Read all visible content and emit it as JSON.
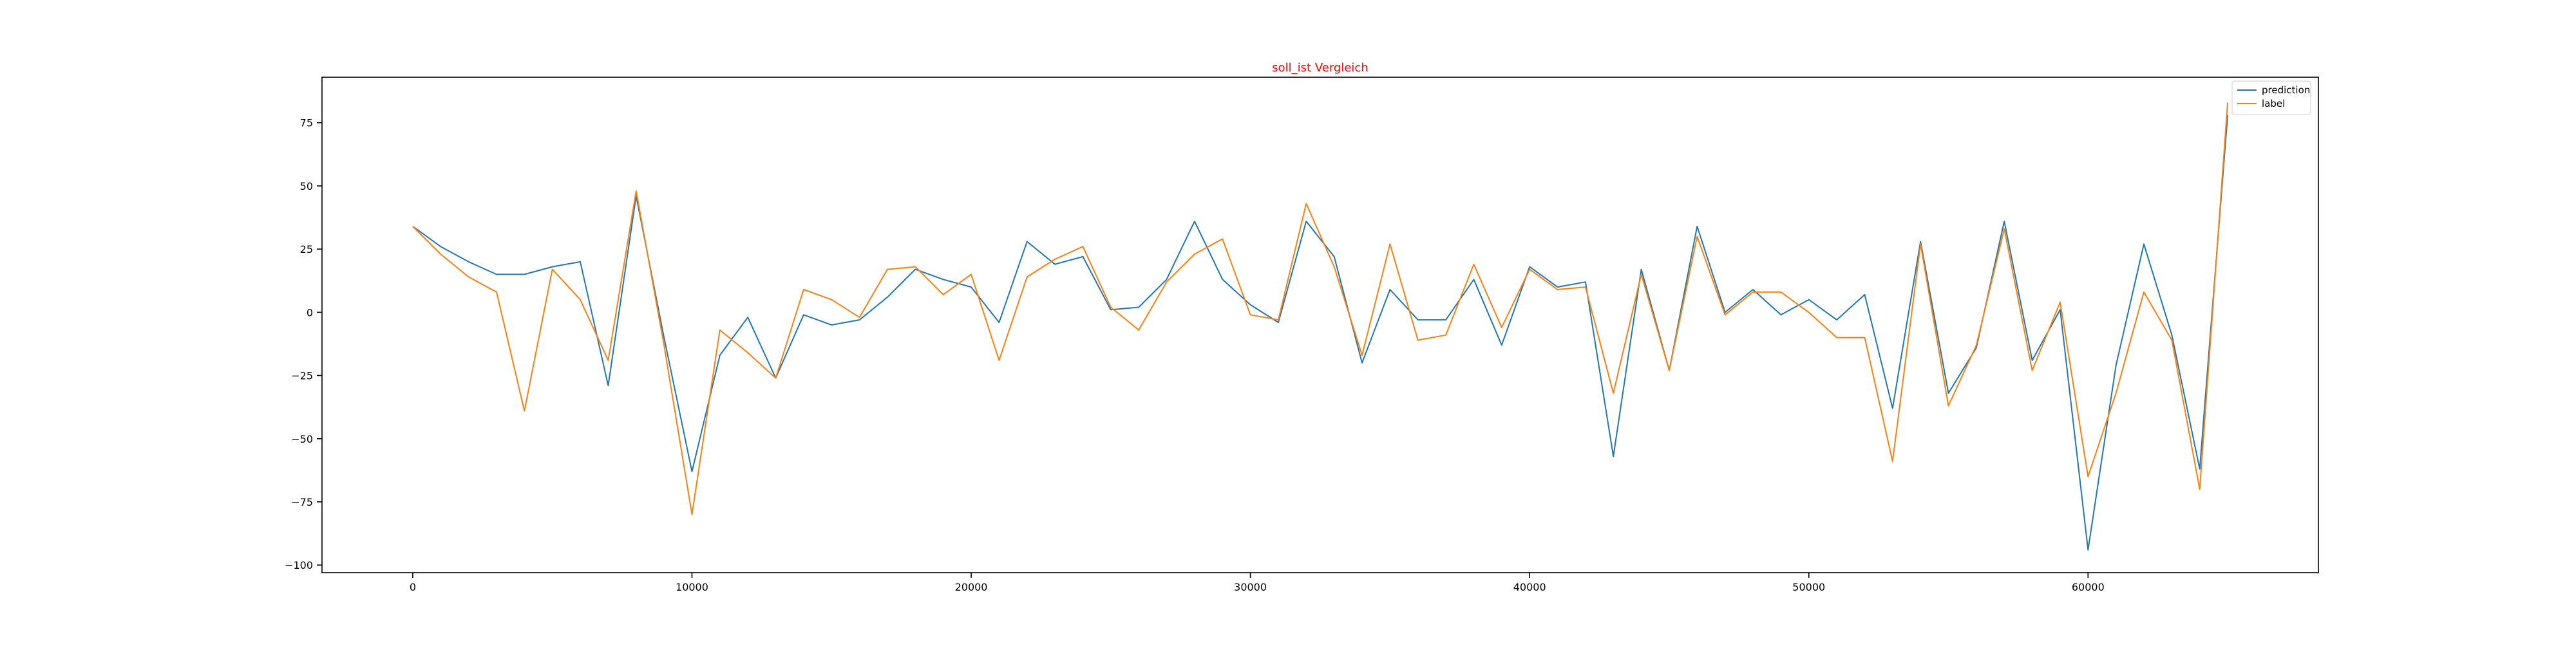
{
  "chart_data": {
    "type": "line",
    "title": "soll_ist Vergleich",
    "title_color": "#ff0000",
    "xlabel": "",
    "ylabel": "",
    "xlim": [
      -3250,
      68250
    ],
    "ylim": [
      -103,
      93
    ],
    "xticks": [
      0,
      10000,
      20000,
      30000,
      40000,
      50000,
      60000
    ],
    "yticks": [
      -100,
      -75,
      -50,
      -25,
      0,
      25,
      50,
      75
    ],
    "grid": false,
    "legend_position": "top-right",
    "x": [
      0,
      1000,
      2000,
      3000,
      4000,
      5000,
      6000,
      7000,
      8000,
      9000,
      10000,
      11000,
      12000,
      13000,
      14000,
      15000,
      16000,
      17000,
      18000,
      19000,
      20000,
      21000,
      22000,
      23000,
      24000,
      25000,
      26000,
      27000,
      28000,
      29000,
      30000,
      31000,
      32000,
      33000,
      34000,
      35000,
      36000,
      37000,
      38000,
      39000,
      40000,
      41000,
      42000,
      43000,
      44000,
      45000,
      46000,
      47000,
      48000,
      49000,
      50000,
      51000,
      52000,
      53000,
      54000,
      55000,
      56000,
      57000,
      58000,
      59000,
      60000,
      61000,
      62000,
      63000,
      64000,
      65000
    ],
    "series": [
      {
        "name": "prediction",
        "color": "#1f77b4",
        "values": [
          34,
          26,
          20,
          15,
          15,
          18,
          20,
          -29,
          46,
          -10,
          -63,
          -17,
          -2,
          -26,
          -1,
          -5,
          -3,
          6,
          17,
          13,
          10,
          -4,
          28,
          19,
          22,
          1,
          2,
          13,
          36,
          13,
          3,
          -4,
          36,
          22,
          -20,
          9,
          -3,
          -3,
          13,
          -13,
          18,
          10,
          12,
          -57,
          17,
          -23,
          34,
          0,
          9,
          -1,
          5,
          -3,
          7,
          -38,
          28,
          -32,
          -14,
          36,
          -19,
          1,
          -94,
          -21,
          27,
          -9,
          -62,
          78
        ]
      },
      {
        "name": "label",
        "color": "#ff7f0e",
        "values": [
          34,
          23,
          14,
          8,
          -39,
          17,
          5,
          -19,
          48,
          -13,
          -80,
          -7,
          -16,
          -26,
          9,
          5,
          -2,
          17,
          18,
          7,
          15,
          -19,
          14,
          21,
          26,
          2,
          -7,
          12,
          23,
          29,
          -1,
          -3,
          43,
          18,
          -17,
          27,
          -11,
          -9,
          19,
          -6,
          17,
          9,
          10,
          -32,
          15,
          -23,
          30,
          -1,
          8,
          8,
          0,
          -10,
          -10,
          -59,
          27,
          -37,
          -13,
          33,
          -23,
          4,
          -65,
          -32,
          8,
          -11,
          -70,
          83
        ]
      }
    ]
  }
}
